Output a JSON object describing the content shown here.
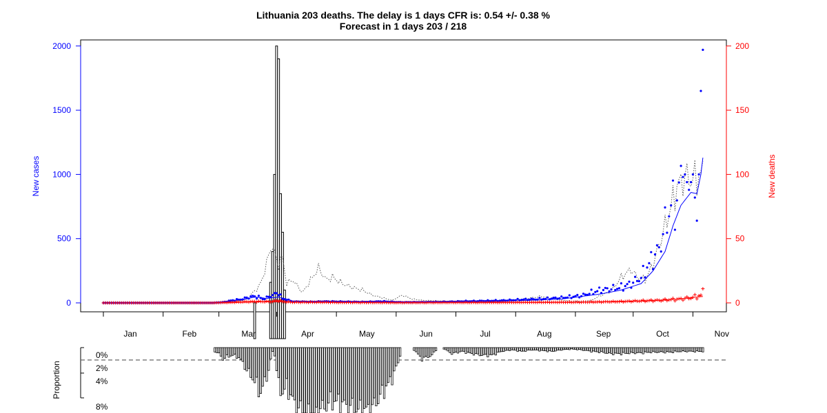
{
  "chart_data": {
    "type": "bar",
    "title": "Lithuania 203 deaths. The delay is 1 days CFR is: 0.54 +/- 0.38 %",
    "subtitle": "Forecast in 1 days 203 / 218",
    "ylabel_left": "New cases",
    "ylabel_right": "New deaths",
    "lower_ylabel": "Proportion",
    "colors": {
      "cases": "#0000ff",
      "deaths": "#ff0000",
      "bars": "#000000",
      "smoothed": "#555555"
    },
    "x_month_labels": [
      "Jan",
      "Feb",
      "Mar",
      "Apr",
      "May",
      "Jun",
      "Jul",
      "Aug",
      "Sep",
      "Oct",
      "Nov"
    ],
    "left_axis": {
      "range": [
        0,
        2000
      ],
      "ticks": [
        "0",
        "500",
        "1000",
        "1500",
        "2000"
      ]
    },
    "right_axis": {
      "range": [
        0,
        200
      ],
      "ticks": [
        "0",
        "50",
        "100",
        "150",
        "200"
      ]
    },
    "lower_axis": {
      "ticks": [
        "0%",
        "2%",
        "4%",
        "8%"
      ]
    },
    "cases_anchors": [
      [
        0,
        0
      ],
      [
        55,
        0
      ],
      [
        60,
        5
      ],
      [
        62,
        12
      ],
      [
        65,
        20
      ],
      [
        68,
        25
      ],
      [
        70,
        30
      ],
      [
        72,
        40
      ],
      [
        75,
        50
      ],
      [
        78,
        45
      ],
      [
        80,
        30
      ],
      [
        82,
        40
      ],
      [
        85,
        60
      ],
      [
        88,
        80
      ],
      [
        90,
        30
      ],
      [
        93,
        20
      ],
      [
        95,
        10
      ],
      [
        100,
        10
      ],
      [
        105,
        8
      ],
      [
        110,
        12
      ],
      [
        120,
        10
      ],
      [
        130,
        8
      ],
      [
        140,
        12
      ],
      [
        150,
        5
      ],
      [
        160,
        6
      ],
      [
        170,
        8
      ],
      [
        180,
        12
      ],
      [
        190,
        15
      ],
      [
        200,
        18
      ],
      [
        210,
        25
      ],
      [
        220,
        30
      ],
      [
        230,
        40
      ],
      [
        240,
        55
      ],
      [
        245,
        80
      ],
      [
        250,
        100
      ],
      [
        255,
        110
      ],
      [
        260,
        120
      ],
      [
        265,
        150
      ],
      [
        270,
        200
      ],
      [
        273,
        280
      ],
      [
        276,
        350
      ],
      [
        279,
        420
      ],
      [
        282,
        600
      ],
      [
        285,
        760
      ],
      [
        288,
        780
      ],
      [
        290,
        960
      ],
      [
        292,
        1000
      ],
      [
        294,
        880
      ],
      [
        296,
        1000
      ],
      [
        298,
        640
      ],
      [
        299,
        1000
      ],
      [
        300,
        1650
      ],
      [
        301,
        1970
      ]
    ],
    "cases_smooth_anchors": [
      [
        0,
        0
      ],
      [
        55,
        0
      ],
      [
        62,
        8
      ],
      [
        70,
        25
      ],
      [
        76,
        45
      ],
      [
        82,
        35
      ],
      [
        88,
        45
      ],
      [
        92,
        30
      ],
      [
        95,
        15
      ],
      [
        110,
        10
      ],
      [
        150,
        8
      ],
      [
        200,
        12
      ],
      [
        230,
        30
      ],
      [
        250,
        70
      ],
      [
        260,
        100
      ],
      [
        270,
        150
      ],
      [
        276,
        250
      ],
      [
        282,
        400
      ],
      [
        286,
        600
      ],
      [
        290,
        760
      ],
      [
        295,
        860
      ],
      [
        298,
        850
      ],
      [
        300,
        1000
      ],
      [
        301,
        1130
      ]
    ],
    "deaths_anchors": [
      [
        0,
        0
      ],
      [
        55,
        0
      ],
      [
        65,
        0.5
      ],
      [
        75,
        1
      ],
      [
        85,
        1
      ],
      [
        88,
        2
      ],
      [
        90,
        1
      ],
      [
        95,
        0.5
      ],
      [
        100,
        0.5
      ],
      [
        110,
        0.5
      ],
      [
        120,
        0.3
      ],
      [
        150,
        0.2
      ],
      [
        200,
        0.3
      ],
      [
        240,
        0.5
      ],
      [
        260,
        1
      ],
      [
        270,
        1.5
      ],
      [
        280,
        2
      ],
      [
        290,
        3
      ],
      [
        295,
        4
      ],
      [
        298,
        5
      ],
      [
        300,
        6
      ],
      [
        301,
        11
      ]
    ],
    "deaths_smooth_anchors": [
      [
        0,
        0
      ],
      [
        60,
        0
      ],
      [
        75,
        0.7
      ],
      [
        85,
        1
      ],
      [
        90,
        0.8
      ],
      [
        100,
        0.5
      ],
      [
        150,
        0.2
      ],
      [
        240,
        0.5
      ],
      [
        270,
        1.5
      ],
      [
        285,
        2.5
      ],
      [
        295,
        4
      ],
      [
        301,
        5
      ]
    ],
    "projected_anchors": [
      [
        0,
        0
      ],
      [
        60,
        0
      ],
      [
        65,
        10
      ],
      [
        70,
        20
      ],
      [
        73,
        40
      ],
      [
        75,
        80
      ],
      [
        78,
        120
      ],
      [
        80,
        200
      ],
      [
        82,
        300
      ],
      [
        84,
        450
      ],
      [
        86,
        380
      ],
      [
        88,
        300
      ],
      [
        90,
        350
      ],
      [
        92,
        150
      ],
      [
        95,
        180
      ],
      [
        98,
        120
      ],
      [
        100,
        80
      ],
      [
        105,
        200
      ],
      [
        108,
        270
      ],
      [
        112,
        180
      ],
      [
        115,
        200
      ],
      [
        120,
        150
      ],
      [
        125,
        120
      ],
      [
        130,
        100
      ],
      [
        135,
        60
      ],
      [
        140,
        40
      ],
      [
        145,
        20
      ],
      [
        150,
        60
      ],
      [
        155,
        30
      ],
      [
        160,
        20
      ],
      [
        170,
        15
      ],
      [
        180,
        10
      ],
      [
        190,
        5
      ],
      [
        200,
        10
      ],
      [
        210,
        30
      ],
      [
        220,
        50
      ],
      [
        230,
        20
      ],
      [
        240,
        10
      ],
      [
        245,
        20
      ],
      [
        250,
        60
      ],
      [
        255,
        90
      ],
      [
        260,
        200
      ],
      [
        265,
        260
      ],
      [
        268,
        200
      ],
      [
        272,
        180
      ],
      [
        276,
        300
      ],
      [
        280,
        500
      ],
      [
        284,
        700
      ],
      [
        288,
        900
      ],
      [
        292,
        980
      ],
      [
        296,
        960
      ],
      [
        300,
        1000
      ]
    ],
    "deaths_bars": [
      [
        76,
        0
      ],
      [
        84,
        16
      ],
      [
        85,
        40
      ],
      [
        86,
        100
      ],
      [
        87,
        200
      ],
      [
        88,
        190
      ],
      [
        89,
        85
      ],
      [
        90,
        55
      ],
      [
        91,
        10
      ]
    ],
    "cfr_proportion_anchors": [
      [
        0,
        0
      ],
      [
        55,
        0
      ],
      [
        56,
        0.5
      ],
      [
        58,
        0.8
      ],
      [
        60,
        1.5
      ],
      [
        62,
        1.2
      ],
      [
        65,
        1
      ],
      [
        68,
        1.3
      ],
      [
        70,
        2
      ],
      [
        72,
        3
      ],
      [
        75,
        4
      ],
      [
        77,
        5
      ],
      [
        79,
        6
      ],
      [
        81,
        4.5
      ],
      [
        83,
        3
      ],
      [
        85,
        0.5
      ],
      [
        86,
        1
      ],
      [
        88,
        5
      ],
      [
        90,
        6
      ],
      [
        92,
        5
      ],
      [
        95,
        7
      ],
      [
        98,
        8
      ],
      [
        100,
        9
      ],
      [
        105,
        9.5
      ],
      [
        110,
        8
      ],
      [
        115,
        7
      ],
      [
        120,
        7.5
      ],
      [
        125,
        8
      ],
      [
        130,
        8.5
      ],
      [
        135,
        8
      ],
      [
        140,
        6
      ],
      [
        145,
        4
      ],
      [
        148,
        2
      ],
      [
        150,
        0
      ],
      [
        155,
        0
      ],
      [
        160,
        1.5
      ],
      [
        165,
        1
      ],
      [
        168,
        0
      ],
      [
        170,
        0
      ],
      [
        175,
        0.8
      ],
      [
        180,
        0.5
      ],
      [
        185,
        0.8
      ],
      [
        190,
        1
      ],
      [
        195,
        1
      ],
      [
        200,
        0.5
      ],
      [
        205,
        0.3
      ],
      [
        210,
        0.5
      ],
      [
        215,
        0.3
      ],
      [
        220,
        0.4
      ],
      [
        225,
        0.5
      ],
      [
        230,
        0.3
      ],
      [
        235,
        0.2
      ],
      [
        240,
        0.3
      ],
      [
        245,
        0.5
      ],
      [
        250,
        0.6
      ],
      [
        255,
        0.8
      ],
      [
        260,
        0.8
      ],
      [
        265,
        0.7
      ],
      [
        270,
        0.7
      ],
      [
        275,
        0.6
      ],
      [
        280,
        0.6
      ],
      [
        285,
        0.6
      ],
      [
        290,
        0.5
      ],
      [
        295,
        0.5
      ],
      [
        301,
        0.5
      ]
    ]
  }
}
